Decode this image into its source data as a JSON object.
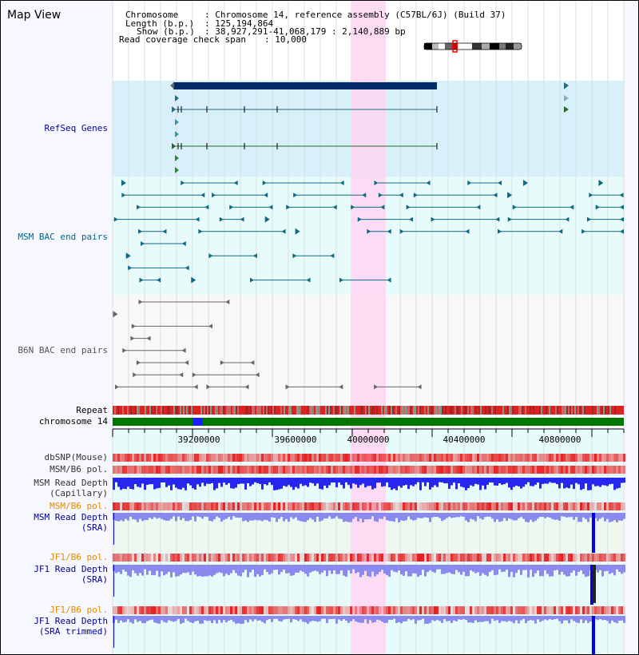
{
  "window_title": "Map View",
  "header": {
    "chromosome_key": "Chromosome",
    "chromosome_value": ": Chromosome 14, reference assembly (C57BL/6J) (Build 37)",
    "length_key": "Length (b.p.)",
    "length_value": ": 125,194,864",
    "show_key": "Show (b.p.)",
    "show_value": ": 38,927,291-41,068,179 : 2,140,889 bp",
    "coverage_key": "Read coverage check span",
    "coverage_value": ": 10,000"
  },
  "tracks": {
    "refseq": "RefSeq Genes",
    "msm_bac": "MSM BAC end pairs",
    "b6n_bac": "B6N BAC end pairs",
    "repeat": "Repeat",
    "chromosome": "chromosome 14",
    "dbsnp": "dbSNP(Mouse)",
    "msm_b6_pol_1": "MSM/B6 pol.",
    "msm_read_depth_cap_1": "MSM Read Depth",
    "msm_read_depth_cap_2": "(Capillary)",
    "msm_b6_pol_2": "MSM/B6 pol.",
    "msm_read_depth_sra_1": "MSM Read Depth",
    "msm_read_depth_sra_2": "(SRA)",
    "jf1_b6_pol_1": "JF1/B6 pol.",
    "jf1_read_depth_sra_1": "JF1 Read Depth",
    "jf1_read_depth_sra_2": "(SRA)",
    "jf1_b6_pol_2": "JF1/B6 pol.",
    "jf1_read_depth_trim_1": "JF1 Read Depth",
    "jf1_read_depth_trim_2": "(SRA trimmed)"
  },
  "ruler": {
    "ticks": [
      "39200000",
      "39600000",
      "40000000",
      "40400000",
      "40800000"
    ]
  },
  "colors": {
    "highlight": "#ffd6f2",
    "refseq_band": "#d7f0fa",
    "bac_band": "#e8fbfb",
    "gene_dark": "#002b66",
    "msm_bac": "#0e6a84",
    "b6n_bac": "#666666",
    "chromosome": "#007700",
    "read_depth_blue": "#2626ee",
    "sra_blue": "#8a8aee",
    "label_navy": "#000099",
    "label_orange": "#e38a00",
    "label_teal": "#006688"
  }
}
